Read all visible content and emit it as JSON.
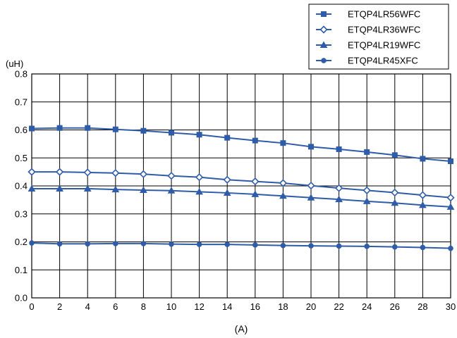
{
  "chart_data": {
    "type": "line",
    "xlabel": "(A)",
    "ylabel": "(uH)",
    "xlim": [
      0,
      30
    ],
    "ylim": [
      0.0,
      0.8
    ],
    "x_ticks": [
      "0",
      "2",
      "4",
      "6",
      "8",
      "10",
      "12",
      "14",
      "16",
      "18",
      "20",
      "22",
      "24",
      "26",
      "28",
      "30"
    ],
    "y_ticks": [
      "0.0",
      "0.1",
      "0.2",
      "0.3",
      "0.4",
      "0.5",
      "0.6",
      "0.7",
      "0.8"
    ],
    "grid": true,
    "legend_position": "top-right",
    "line_color": "#2f5ca8",
    "x": [
      0,
      2,
      4,
      6,
      8,
      10,
      12,
      14,
      16,
      18,
      20,
      22,
      24,
      26,
      28,
      30
    ],
    "series": [
      {
        "name": "ETQP4LR56WFC",
        "marker": "square",
        "values": [
          0.605,
          0.607,
          0.607,
          0.602,
          0.597,
          0.59,
          0.583,
          0.572,
          0.562,
          0.553,
          0.54,
          0.531,
          0.521,
          0.51,
          0.497,
          0.488
        ]
      },
      {
        "name": "ETQP4LR36WFC",
        "marker": "diamond",
        "values": [
          0.45,
          0.45,
          0.448,
          0.446,
          0.442,
          0.436,
          0.431,
          0.422,
          0.416,
          0.41,
          0.401,
          0.392,
          0.384,
          0.376,
          0.367,
          0.358
        ]
      },
      {
        "name": "ETQP4LR19WFC",
        "marker": "triangle",
        "values": [
          0.39,
          0.39,
          0.39,
          0.387,
          0.385,
          0.383,
          0.379,
          0.375,
          0.37,
          0.364,
          0.358,
          0.352,
          0.345,
          0.339,
          0.331,
          0.325
        ]
      },
      {
        "name": "ETQP4LR45XFC",
        "marker": "circle",
        "values": [
          0.196,
          0.193,
          0.193,
          0.194,
          0.194,
          0.192,
          0.191,
          0.191,
          0.189,
          0.187,
          0.186,
          0.185,
          0.184,
          0.182,
          0.18,
          0.177
        ]
      }
    ]
  }
}
